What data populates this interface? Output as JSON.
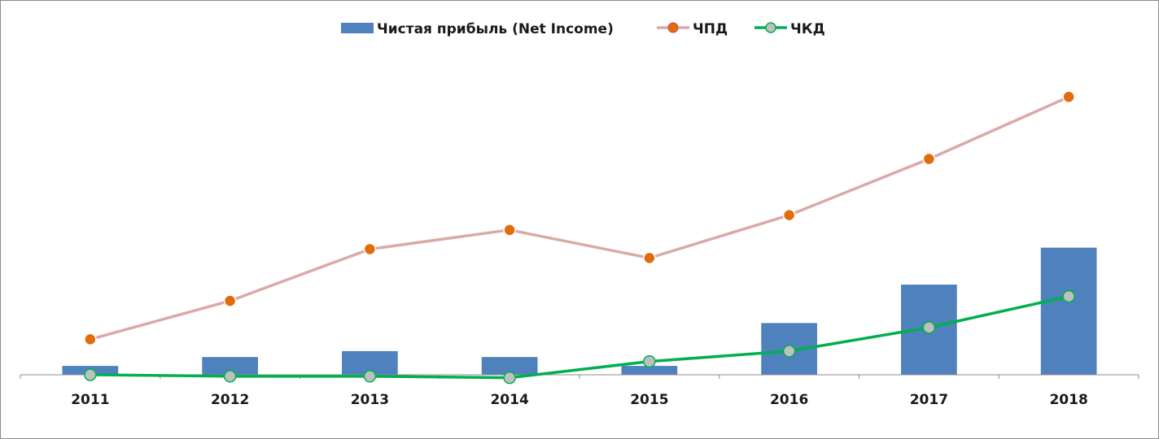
{
  "chart_data": {
    "type": "bar",
    "categories": [
      "2011",
      "2012",
      "2013",
      "2014",
      "2015",
      "2016",
      "2017",
      "2018"
    ],
    "series": [
      {
        "name": "Чистая прибыль (Net Income)",
        "type": "bar",
        "color": "#4f81bd",
        "values": [
          6,
          12,
          16,
          12,
          6,
          35,
          61,
          86
        ]
      },
      {
        "name": "ЧПД",
        "type": "line",
        "color": "#d9aaa8",
        "marker_color": "#e36c0a",
        "values": [
          24,
          50,
          85,
          98,
          79,
          108,
          146,
          188
        ]
      },
      {
        "name": "ЧКД",
        "type": "line",
        "color": "#00b050",
        "marker_color": "#bfbfbf",
        "values": [
          0,
          -1,
          -1,
          -2,
          9,
          16,
          32,
          53
        ]
      }
    ],
    "ylim": [
      -10,
      220
    ],
    "grid": false,
    "legend_position": "top-center"
  }
}
